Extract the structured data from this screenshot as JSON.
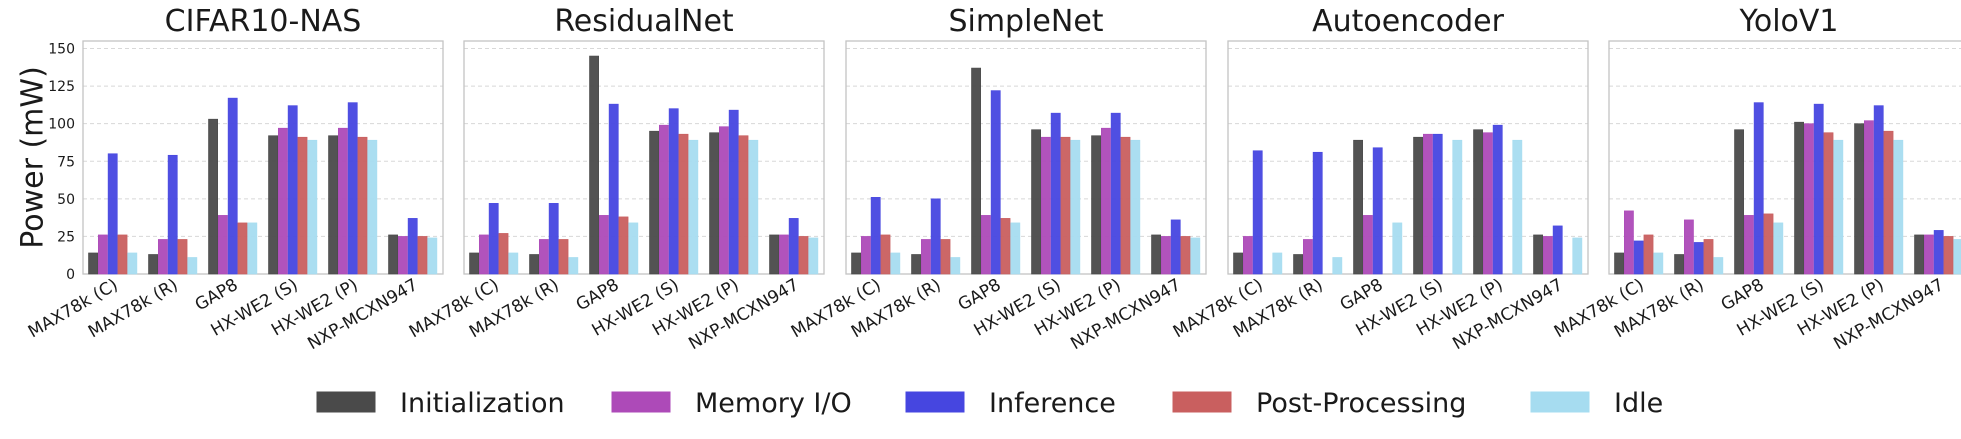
{
  "chart_data": {
    "type": "bar",
    "ylabel": "Power (mW)",
    "ylim": [
      0,
      155
    ],
    "yticks": [
      0,
      25,
      50,
      75,
      100,
      125,
      150
    ],
    "grid": true,
    "legend_position": "bottom-center",
    "categories": [
      "MAX78k (C)",
      "MAX78k (R)",
      "GAP8",
      "HX-WE2 (S)",
      "HX-WE2 (P)",
      "NXP-MCXN947"
    ],
    "series_names": [
      "Initialization",
      "Memory I/O",
      "Inference",
      "Post-Processing",
      "Idle"
    ],
    "series_colors": [
      "#4a4a4a",
      "#ad4ab8",
      "#4646e0",
      "#c95f5f",
      "#a6dcf0"
    ],
    "panels": [
      {
        "title": "CIFAR10-NAS",
        "values": [
          [
            14,
            26,
            80,
            26,
            14
          ],
          [
            13,
            23,
            79,
            23,
            11
          ],
          [
            103,
            39,
            117,
            34,
            34
          ],
          [
            92,
            97,
            112,
            91,
            89
          ],
          [
            92,
            97,
            114,
            91,
            89
          ],
          [
            26,
            25,
            37,
            25,
            24
          ]
        ]
      },
      {
        "title": "ResidualNet",
        "values": [
          [
            14,
            26,
            47,
            27,
            14
          ],
          [
            13,
            23,
            47,
            23,
            11
          ],
          [
            145,
            39,
            113,
            38,
            34
          ],
          [
            95,
            99,
            110,
            93,
            89
          ],
          [
            94,
            98,
            109,
            92,
            89
          ],
          [
            26,
            26,
            37,
            25,
            24
          ]
        ]
      },
      {
        "title": "SimpleNet",
        "values": [
          [
            14,
            25,
            51,
            26,
            14
          ],
          [
            13,
            23,
            50,
            23,
            11
          ],
          [
            137,
            39,
            122,
            37,
            34
          ],
          [
            96,
            91,
            107,
            91,
            89
          ],
          [
            92,
            97,
            107,
            91,
            89
          ],
          [
            26,
            25,
            36,
            25,
            24
          ]
        ]
      },
      {
        "title": "Autoencoder",
        "values": [
          [
            14,
            25,
            82,
            0,
            14
          ],
          [
            13,
            23,
            81,
            0,
            11
          ],
          [
            89,
            39,
            84,
            0,
            34
          ],
          [
            91,
            93,
            93,
            0,
            89
          ],
          [
            96,
            94,
            99,
            0,
            89
          ],
          [
            26,
            25,
            32,
            0,
            24
          ]
        ]
      },
      {
        "title": "YoloV1",
        "values": [
          [
            14,
            42,
            22,
            26,
            14
          ],
          [
            13,
            36,
            21,
            23,
            11
          ],
          [
            96,
            39,
            114,
            40,
            34
          ],
          [
            101,
            100,
            113,
            94,
            89
          ],
          [
            100,
            102,
            112,
            95,
            89
          ],
          [
            26,
            26,
            29,
            25,
            23
          ]
        ]
      }
    ]
  }
}
